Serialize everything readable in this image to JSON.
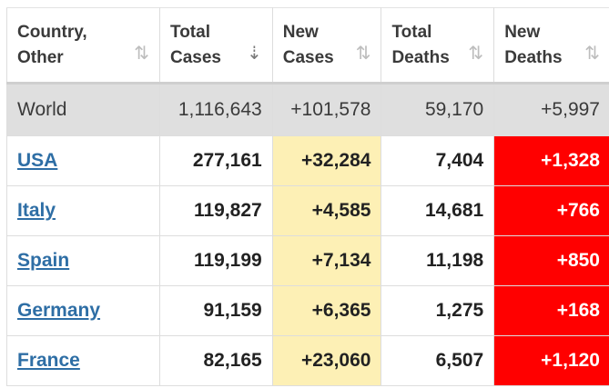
{
  "columns": [
    {
      "label": "Country,\nOther"
    },
    {
      "label": "Total\nCases"
    },
    {
      "label": "New\nCases"
    },
    {
      "label": "Total\nDeaths"
    },
    {
      "label": "New\nDeaths"
    }
  ],
  "sort_icons": {
    "default": "⇅",
    "active": "⇣"
  },
  "world": {
    "name": "World",
    "total_cases": "1,116,643",
    "new_cases": "+101,578",
    "total_deaths": "59,170",
    "new_deaths": "+5,997"
  },
  "rows": [
    {
      "name": "USA",
      "total_cases": "277,161",
      "new_cases": "+32,284",
      "total_deaths": "7,404",
      "new_deaths": "+1,328"
    },
    {
      "name": "Italy",
      "total_cases": "119,827",
      "new_cases": "+4,585",
      "total_deaths": "14,681",
      "new_deaths": "+766"
    },
    {
      "name": "Spain",
      "total_cases": "119,199",
      "new_cases": "+7,134",
      "total_deaths": "11,198",
      "new_deaths": "+850"
    },
    {
      "name": "Germany",
      "total_cases": "91,159",
      "new_cases": "+6,365",
      "total_deaths": "1,275",
      "new_deaths": "+168"
    },
    {
      "name": "France",
      "total_cases": "82,165",
      "new_cases": "+23,060",
      "total_deaths": "6,507",
      "new_deaths": "+1,120"
    }
  ],
  "colors": {
    "new_cases_bg": "#fdf0b5",
    "new_deaths_bg": "#ff0000",
    "link": "#2e6ea5",
    "world_bg": "#dfdfdf"
  }
}
